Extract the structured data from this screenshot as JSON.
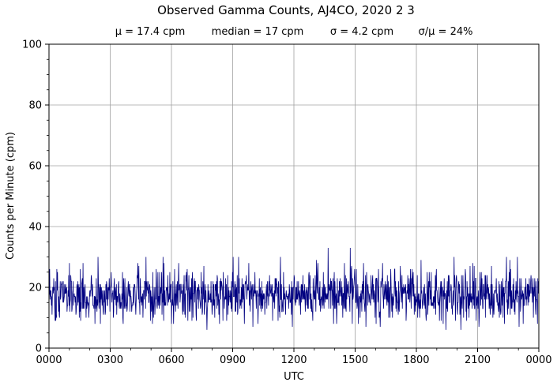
{
  "chart_data": {
    "type": "line",
    "title": "Observed Gamma Counts, AJ4CO, 2020 2 3",
    "stats": {
      "mean": "μ = 17.4 cpm",
      "median": "median = 17 cpm",
      "sigma": "σ = 4.2 cpm",
      "ratio": "σ/μ = 24%"
    },
    "xlabel": "UTC",
    "ylabel": "Counts per Minute (cpm)",
    "x_ticks": [
      "0000",
      "0300",
      "0600",
      "0900",
      "1200",
      "1500",
      "1800",
      "2100",
      "0000"
    ],
    "y_ticks": [
      0,
      20,
      40,
      60,
      80,
      100
    ],
    "ylim": [
      0,
      100
    ],
    "xlim_hours": [
      0,
      24
    ],
    "grid": true,
    "series": [
      {
        "color": "#000080",
        "sampling": "1 value per minute, 1440 values",
        "values_mean": 17.4,
        "values_sigma": 4.2,
        "notable_peaks": [
          {
            "time": "0224",
            "value": 30
          },
          {
            "time": "0445",
            "value": 30
          },
          {
            "time": "0535",
            "value": 30
          },
          {
            "time": "1340",
            "value": 33
          },
          {
            "time": "1445",
            "value": 33
          },
          {
            "time": "1950",
            "value": 30
          },
          {
            "time": "2045",
            "value": 28
          }
        ],
        "notable_lows": [
          {
            "time": "0606",
            "value": 8
          },
          {
            "time": "1155",
            "value": 7
          },
          {
            "time": "2010",
            "value": 6
          },
          {
            "time": "2355",
            "value": 8
          }
        ]
      }
    ]
  }
}
